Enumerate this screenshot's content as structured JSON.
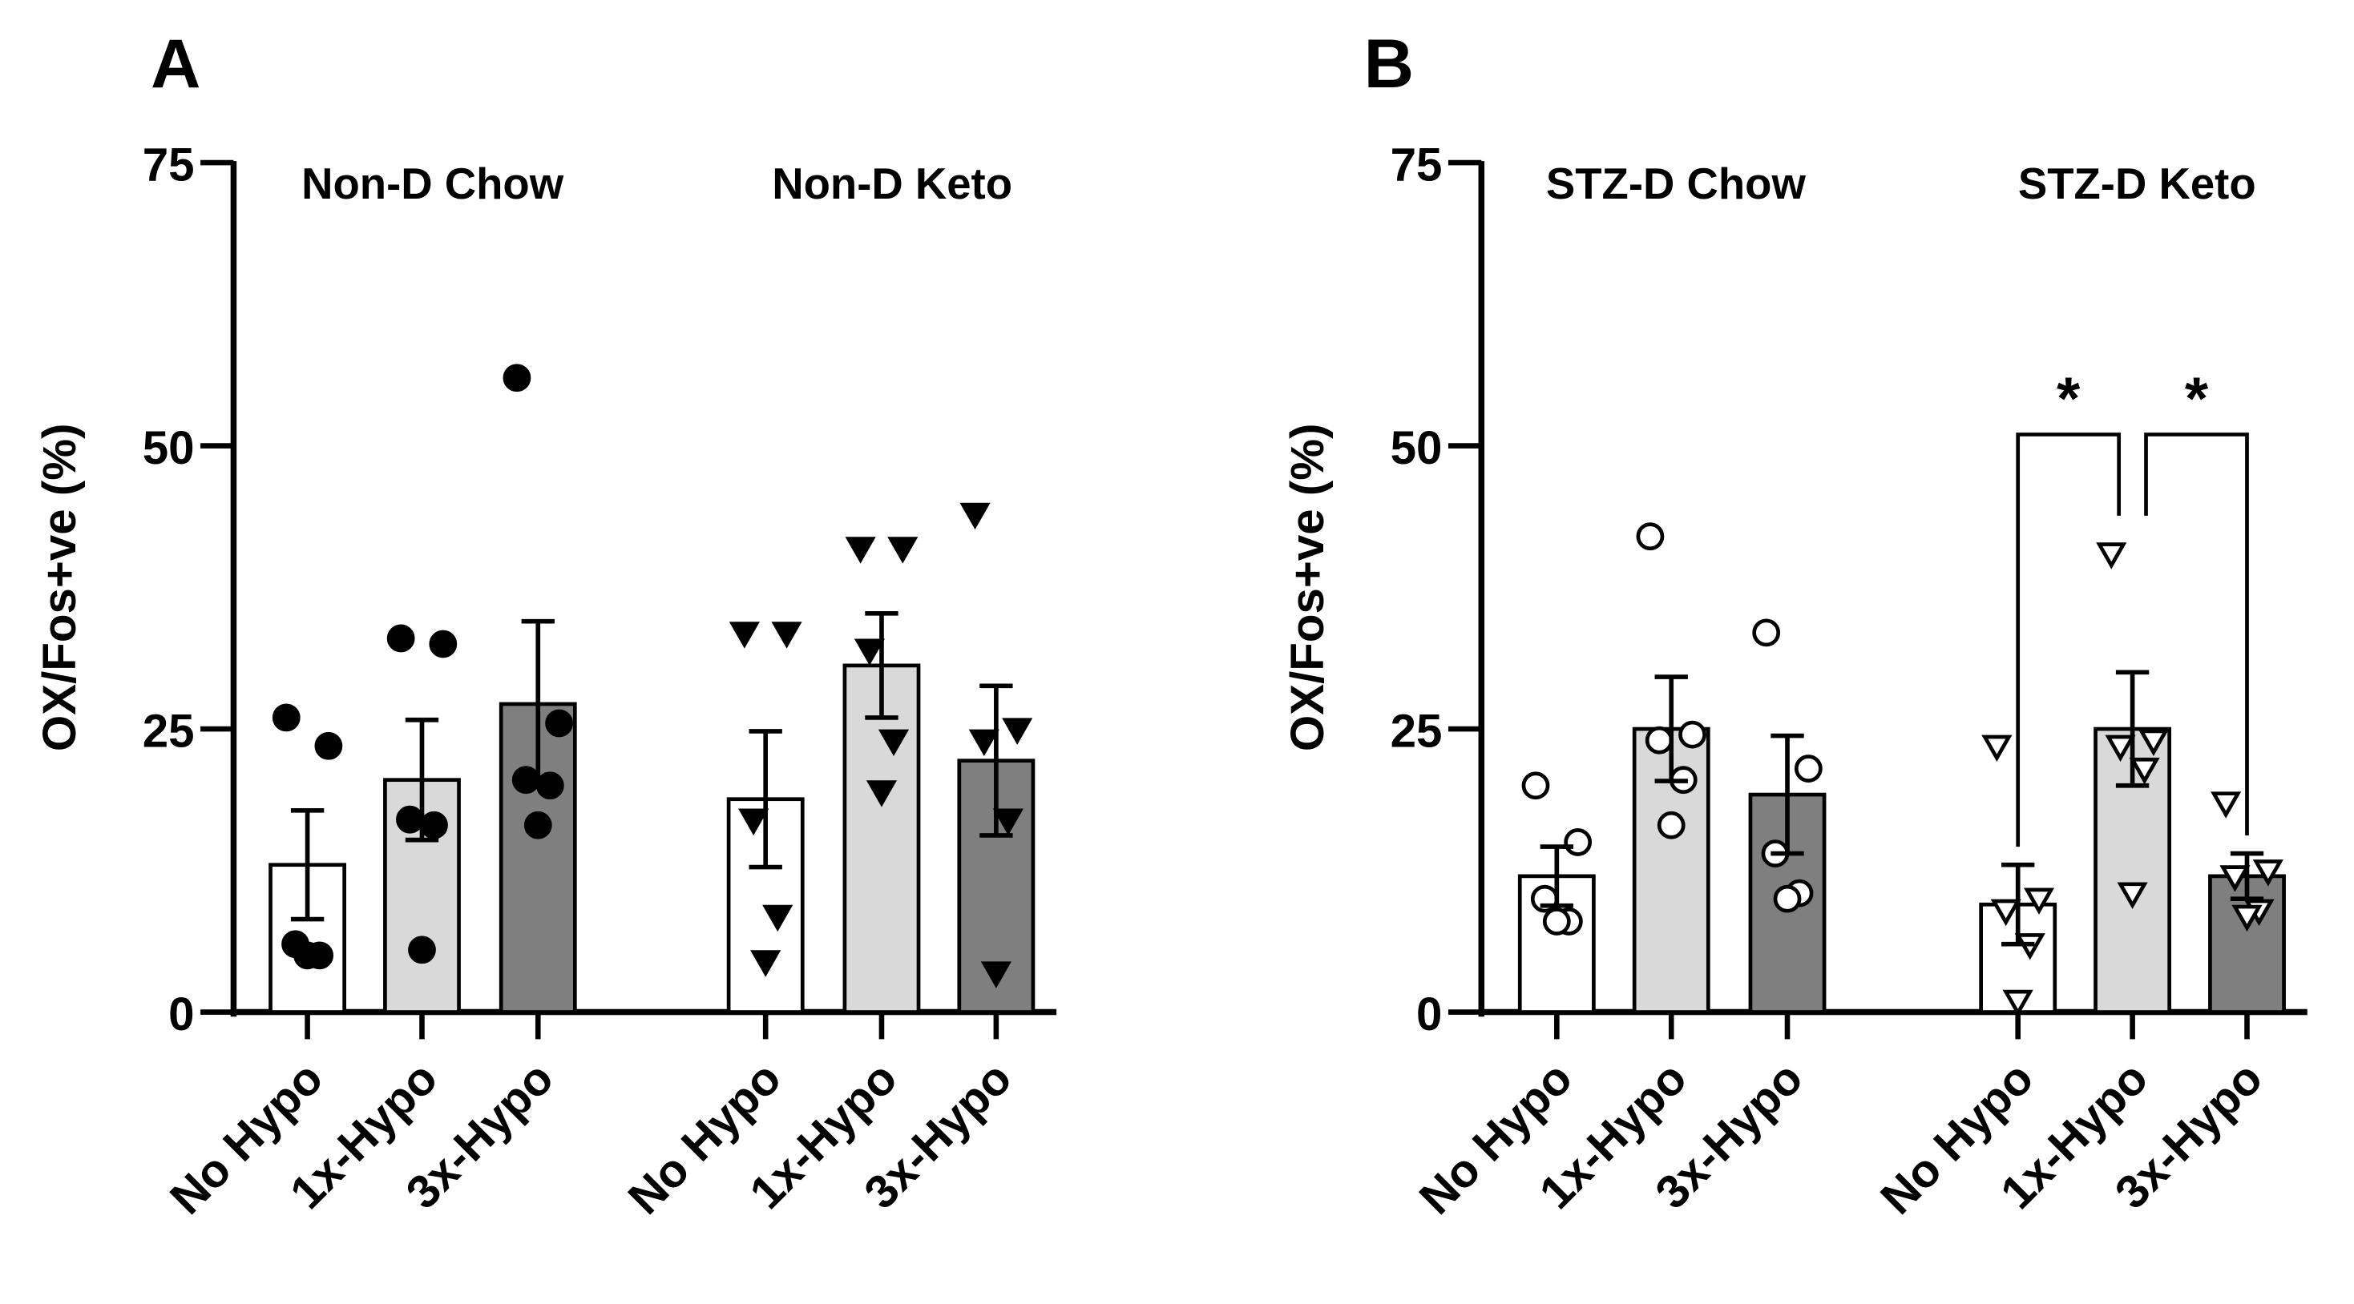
{
  "colors": {
    "axis": "#000000",
    "no_hypo": "#ffffff",
    "one_hypo": "#d9d9d9",
    "three_hypo": "#7f7f7f"
  },
  "chart_data": [
    {
      "panel": "A",
      "type": "bar",
      "ylabel": "OX/Fos+ve (%)",
      "ylim": [
        0,
        75
      ],
      "yticks": [
        0,
        25,
        50,
        75
      ],
      "marker": "filled",
      "groups": [
        {
          "title": "Non-D Chow",
          "marker_shape": "circle",
          "bars": [
            {
              "label": "No Hypo",
              "mean": 13,
              "sem": 4.8,
              "color": "#ffffff",
              "points": [
                26,
                23.5,
                6,
                5,
                5
              ]
            },
            {
              "label": "1x-Hypo",
              "mean": 20.5,
              "sem": 5.3,
              "color": "#d9d9d9",
              "points": [
                33,
                32.5,
                17,
                16.5,
                5.5
              ]
            },
            {
              "label": "3x-Hypo",
              "mean": 27.2,
              "sem": 7.3,
              "color": "#7f7f7f",
              "points": [
                56,
                25.5,
                20.5,
                20,
                16.5
              ]
            }
          ]
        },
        {
          "title": "Non-D Keto",
          "marker_shape": "triangle-down",
          "bars": [
            {
              "label": "No Hypo",
              "mean": 18.8,
              "sem": 6,
              "color": "#ffffff",
              "points": [
                33.5,
                33.5,
                17,
                8.5,
                4.5
              ]
            },
            {
              "label": "1x-Hypo",
              "mean": 30.6,
              "sem": 4.6,
              "color": "#d9d9d9",
              "points": [
                41,
                41,
                32,
                24,
                19.5
              ]
            },
            {
              "label": "3x-Hypo",
              "mean": 22.2,
              "sem": 6.6,
              "color": "#7f7f7f",
              "points": [
                44,
                25,
                24,
                17,
                3.5
              ]
            }
          ]
        }
      ]
    },
    {
      "panel": "B",
      "type": "bar",
      "ylabel": "OX/Fos+ve (%)",
      "ylim": [
        0,
        75
      ],
      "yticks": [
        0,
        25,
        50,
        75
      ],
      "marker": "open",
      "groups": [
        {
          "title": "STZ-D Chow",
          "marker_shape": "circle",
          "bars": [
            {
              "label": "No Hypo",
              "mean": 12,
              "sem": 2.6,
              "color": "#ffffff",
              "points": [
                20,
                15,
                10,
                8,
                8
              ]
            },
            {
              "label": "1x-Hypo",
              "mean": 25,
              "sem": 4.6,
              "color": "#d9d9d9",
              "points": [
                42,
                24.5,
                24,
                20.5,
                16.5
              ]
            },
            {
              "label": "3x-Hypo",
              "mean": 19.2,
              "sem": 5.2,
              "color": "#7f7f7f",
              "points": [
                33.5,
                21.5,
                14,
                10.5,
                10
              ]
            }
          ]
        },
        {
          "title": "STZ-D Keto",
          "marker_shape": "triangle-down",
          "bars": [
            {
              "label": "No Hypo",
              "mean": 9.5,
              "sem": 3.5,
              "color": "#ffffff",
              "points": [
                23.5,
                10,
                9,
                6,
                1
              ]
            },
            {
              "label": "1x-Hypo",
              "mean": 25,
              "sem": 5,
              "color": "#d9d9d9",
              "points": [
                40.5,
                24,
                23.5,
                21.5,
                10.5
              ]
            },
            {
              "label": "3x-Hypo",
              "mean": 12,
              "sem": 2,
              "color": "#7f7f7f",
              "points": [
                18.5,
                12.5,
                12,
                9,
                8.5
              ]
            }
          ]
        }
      ],
      "annotations": [
        {
          "text": "*",
          "from_group": 1,
          "from_bar": 0,
          "to_group": 1,
          "to_bar": 1,
          "y": 51
        },
        {
          "text": "*",
          "from_group": 1,
          "from_bar": 1,
          "to_group": 1,
          "to_bar": 2,
          "y": 51
        }
      ]
    }
  ]
}
